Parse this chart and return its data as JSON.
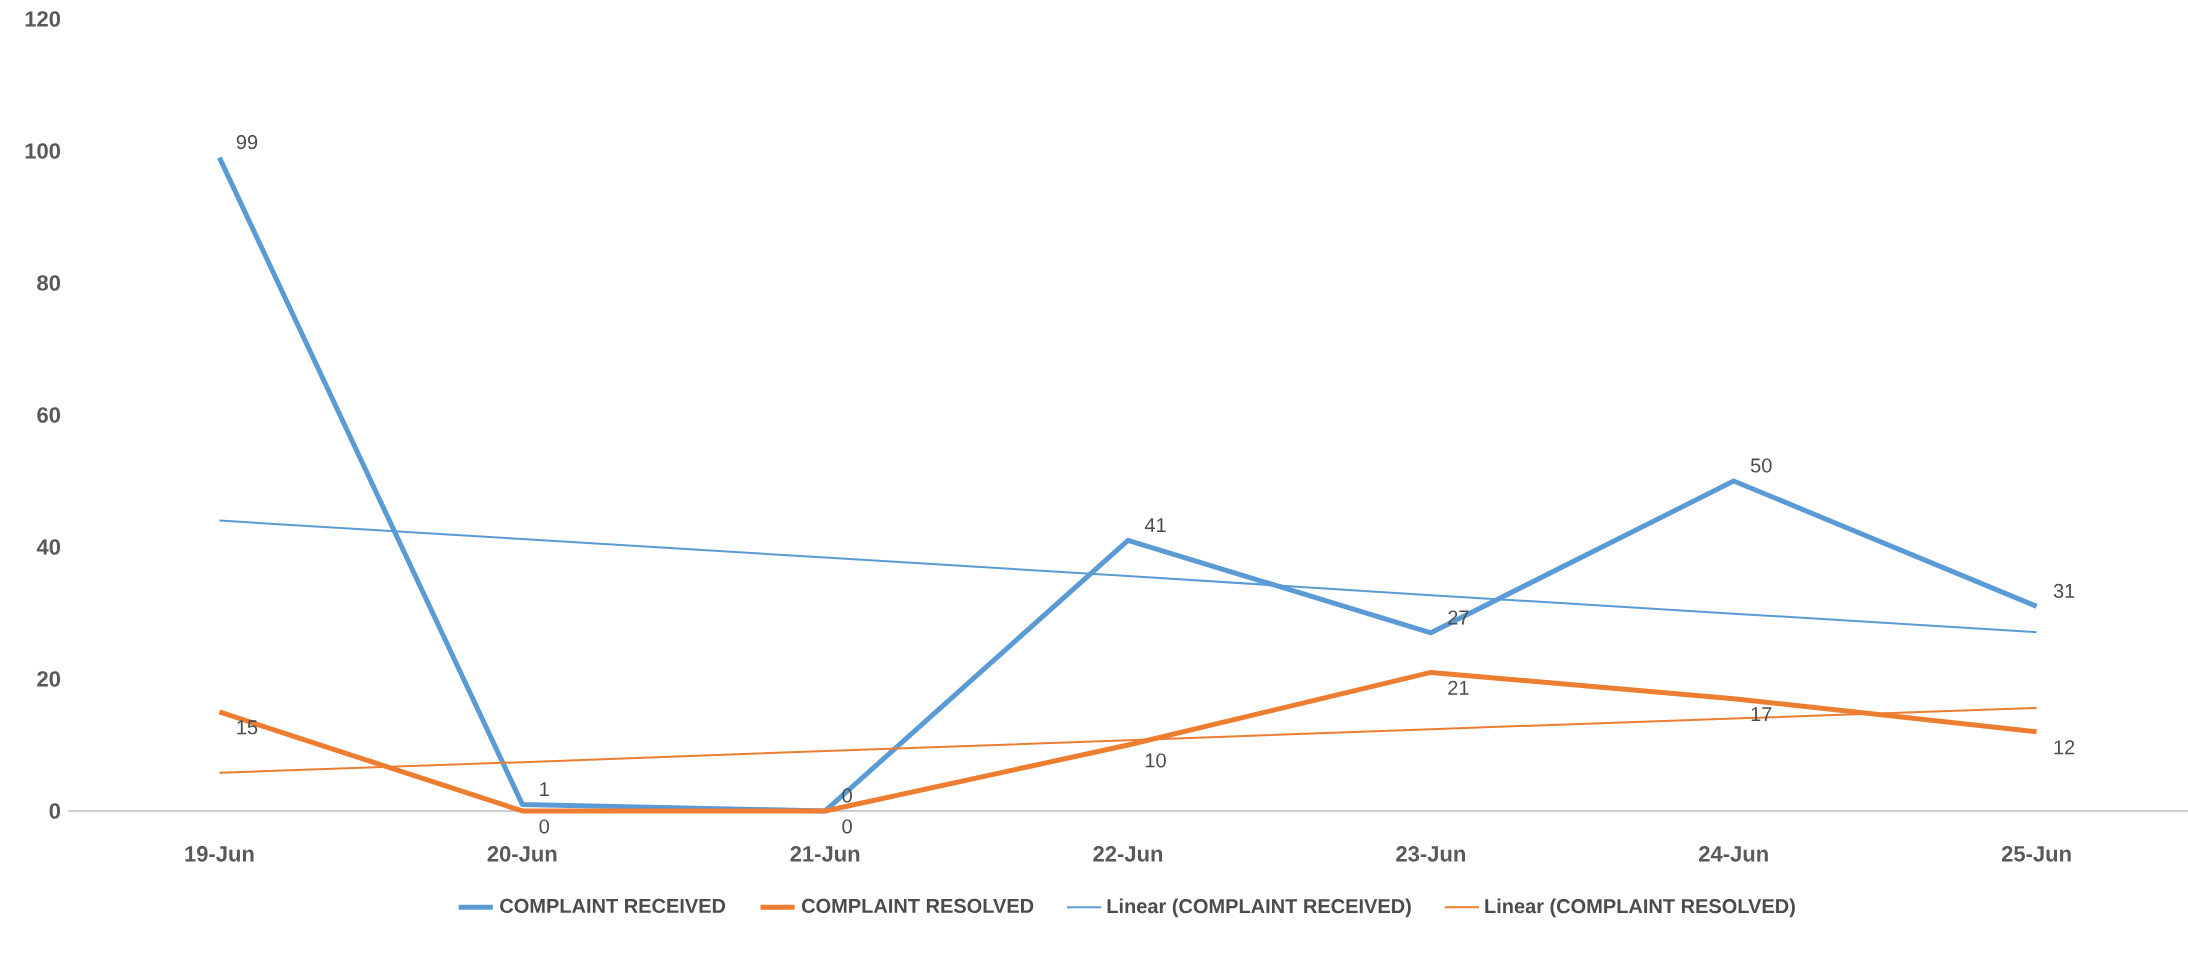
{
  "chart_data": {
    "type": "line",
    "categories": [
      "19-Jun",
      "20-Jun",
      "21-Jun",
      "22-Jun",
      "23-Jun",
      "24-Jun",
      "25-Jun"
    ],
    "series": [
      {
        "name": "COMPLAINT RECEIVED",
        "color": "#5b9bd5",
        "values": [
          99,
          1,
          0,
          41,
          27,
          50,
          31
        ],
        "value_labels": [
          "99",
          "1",
          "0",
          "41",
          "27",
          "50",
          "31"
        ]
      },
      {
        "name": "COMPLAINT RESOLVED",
        "color": "#ed7d31",
        "values": [
          15,
          0,
          0,
          10,
          21,
          17,
          12
        ],
        "value_labels": [
          "15",
          "0",
          "0",
          "10",
          "21",
          "17",
          "12"
        ]
      },
      {
        "name": "Linear (COMPLAINT RECEIVED)",
        "type": "line",
        "color": "#5b9bd5",
        "values": [
          44.0,
          41.2,
          38.4,
          35.6,
          32.7,
          29.9,
          27.1
        ]
      },
      {
        "name": "Linear (COMPLAINT RESOLVED)",
        "type": "line",
        "color": "#ed7d31",
        "values": [
          5.8,
          7.4,
          9.1,
          10.7,
          12.4,
          14.0,
          15.6
        ]
      }
    ],
    "ylim": [
      0,
      120
    ],
    "yticks": [
      0,
      20,
      40,
      60,
      80,
      100,
      120
    ],
    "grid": false,
    "legend": "bottom",
    "marker": "none",
    "line_style": "solid"
  }
}
